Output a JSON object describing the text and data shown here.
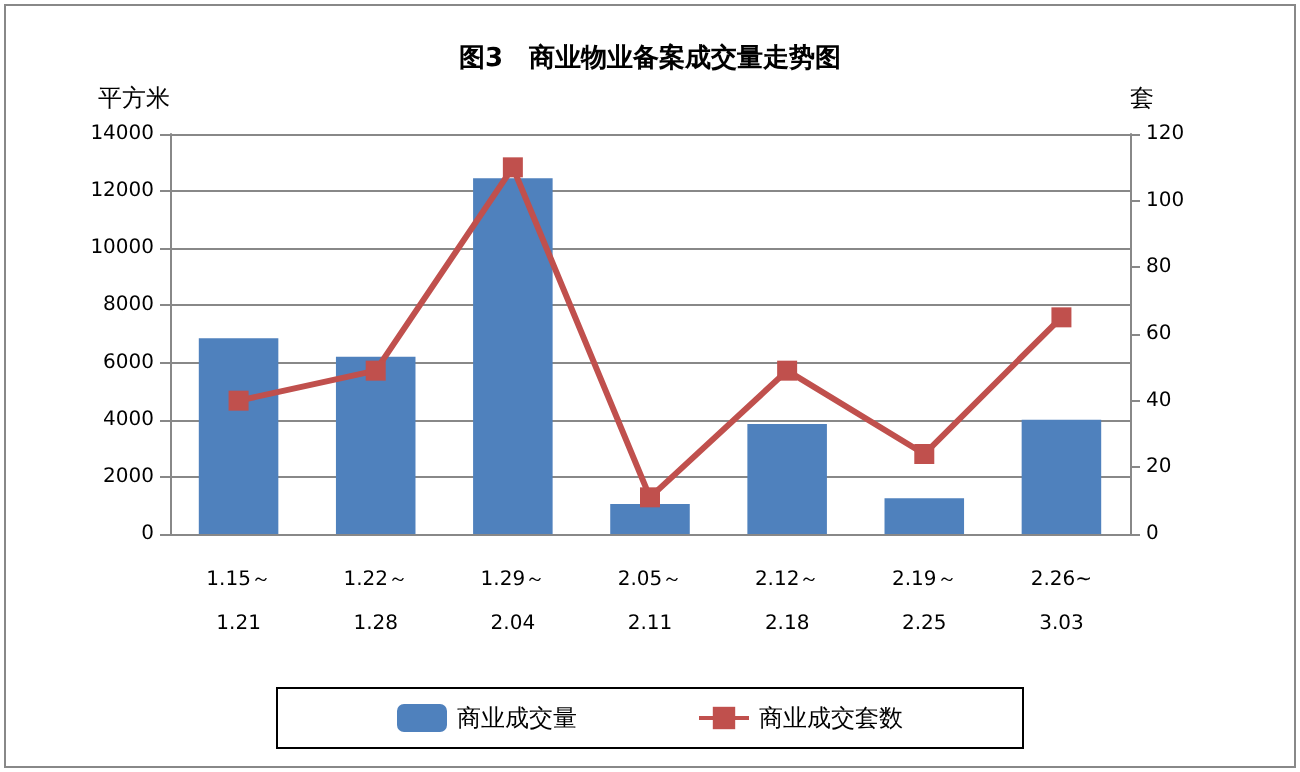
{
  "chart_data": {
    "type": "bar",
    "title": "图3　商业物业备案成交量走势图",
    "ylabel": "平方米",
    "y2label": "套",
    "categories": [
      "1.15～\n1.21",
      "1.22～\n1.28",
      "1.29～\n2.04",
      "2.05～\n2.11",
      "2.12～\n2.18",
      "2.19～\n2.25",
      "2.26~\n3.03"
    ],
    "series": [
      {
        "name": "商业成交量",
        "color": "#4f81bd",
        "values": [
          6850,
          6200,
          12450,
          1050,
          3850,
          1250,
          4000
        ]
      },
      {
        "name": "商业成交套数",
        "type": "line",
        "axis": "y2",
        "color": "#c0504d",
        "marker": "square",
        "values": [
          40,
          49,
          110,
          11,
          49,
          24,
          65
        ]
      }
    ],
    "ylim": [
      0,
      14000
    ],
    "yticks": [
      0,
      2000,
      4000,
      6000,
      8000,
      10000,
      12000,
      14000
    ],
    "y2lim": [
      0,
      120
    ],
    "y2ticks": [
      0,
      20,
      40,
      60,
      80,
      100,
      120
    ],
    "grid": "y",
    "legend": "bottom"
  }
}
